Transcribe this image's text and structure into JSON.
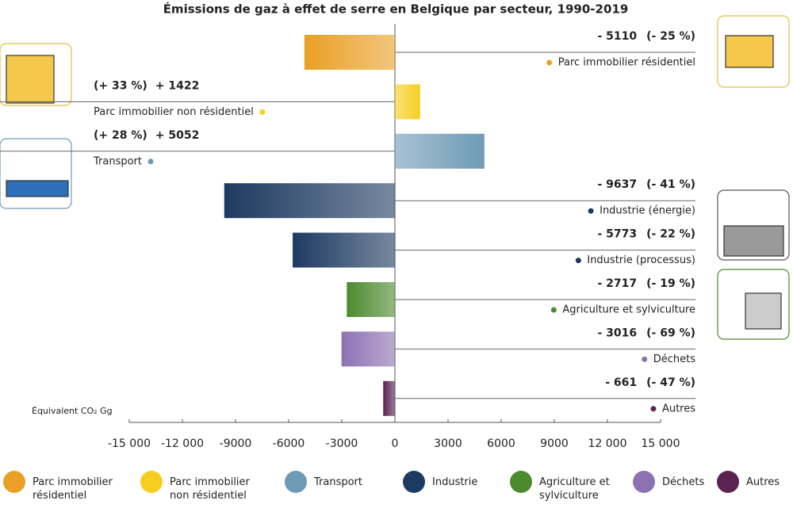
{
  "chart_data": {
    "type": "hbar",
    "title": "Émissions de gaz à effet de serre en Belgique par secteur, 1990-2019",
    "x_label": "Équivalent CO₂ Gg",
    "categories": [
      "Parc immobilier résidentiel",
      "Parc immobilier non résidentiel",
      "Transport",
      "Industrie (énergie)",
      "Industrie (processus)",
      "Agriculture et sylviculture",
      "Déchets",
      "Autres"
    ],
    "values": [
      -5110,
      1422,
      5052,
      -9637,
      -5773,
      -2717,
      -3016,
      -661
    ],
    "value_labels": [
      "- 5110",
      "+ 1422",
      "+ 5052",
      "- 9637",
      "- 5773",
      "- 2717",
      "- 3016",
      "- 661"
    ],
    "percent_changes": [
      -25,
      33,
      28,
      -41,
      -22,
      -19,
      -69,
      -47
    ],
    "percent_labels": [
      "(- 25 %)",
      "(+ 33 %)",
      "(+ 28 %)",
      "(- 41 %)",
      "(- 22 %)",
      "(- 19 %)",
      "(- 69 %)",
      "(- 47 %)"
    ],
    "colors": [
      "#e9a024",
      "#f6cf1e",
      "#6d9bb6",
      "#1d3a60",
      "#1d3a60",
      "#4c8a2e",
      "#8c72b2",
      "#5b2352"
    ],
    "xlim": [
      -15000,
      15000
    ],
    "xticks": [
      {
        "value": -15000,
        "label": "-15 000"
      },
      {
        "value": -12000,
        "label": "-12 000"
      },
      -9000,
      -6000,
      -3000,
      0,
      3000,
      6000,
      9000,
      {
        "value": 12000,
        "label": "12 000"
      },
      {
        "value": 15000,
        "label": "15 000"
      }
    ],
    "legend": [
      {
        "name": "Parc immobilier résidentiel",
        "color": "#e9a024"
      },
      {
        "name": "Parc immobilier non résidentiel",
        "color": "#f6cf1e"
      },
      {
        "name": "Transport",
        "color": "#6d9bb6"
      },
      {
        "name": "Industrie",
        "color": "#1d3a60"
      },
      {
        "name": "Agriculture et sylviculture",
        "color": "#4c8a2e"
      },
      {
        "name": "Déchets",
        "color": "#8c72b2"
      },
      {
        "name": "Autres",
        "color": "#5b2352"
      }
    ]
  }
}
